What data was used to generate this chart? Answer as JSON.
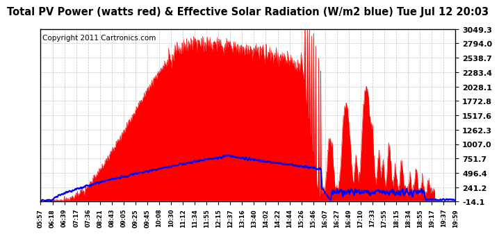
{
  "title": "Total PV Power (watts red) & Effective Solar Radiation (W/m2 blue) Tue Jul 12 20:03",
  "copyright_text": "Copyright 2011 Cartronics.com",
  "ymin": -14.1,
  "ymax": 3049.3,
  "yticks": [
    3049.3,
    2794.0,
    2538.7,
    2283.4,
    2028.1,
    1772.8,
    1517.6,
    1262.3,
    1007.0,
    751.7,
    496.4,
    241.2,
    -14.1
  ],
  "xtick_labels": [
    "05:57",
    "06:18",
    "06:39",
    "07:17",
    "07:36",
    "08:21",
    "08:43",
    "09:05",
    "09:25",
    "09:45",
    "10:08",
    "10:30",
    "11:12",
    "11:34",
    "11:55",
    "12:15",
    "12:37",
    "13:16",
    "13:40",
    "14:02",
    "14:22",
    "14:44",
    "15:26",
    "15:46",
    "16:07",
    "16:27",
    "16:49",
    "17:10",
    "17:33",
    "17:55",
    "18:15",
    "18:34",
    "18:55",
    "19:17",
    "19:37",
    "19:59"
  ],
  "background_color": "#ffffff",
  "plot_bg_color": "#ffffff",
  "grid_color": "#bbbbbb",
  "red_color": "#ff0000",
  "blue_color": "#0000ff",
  "title_fontsize": 10.5,
  "copyright_fontsize": 7.5
}
